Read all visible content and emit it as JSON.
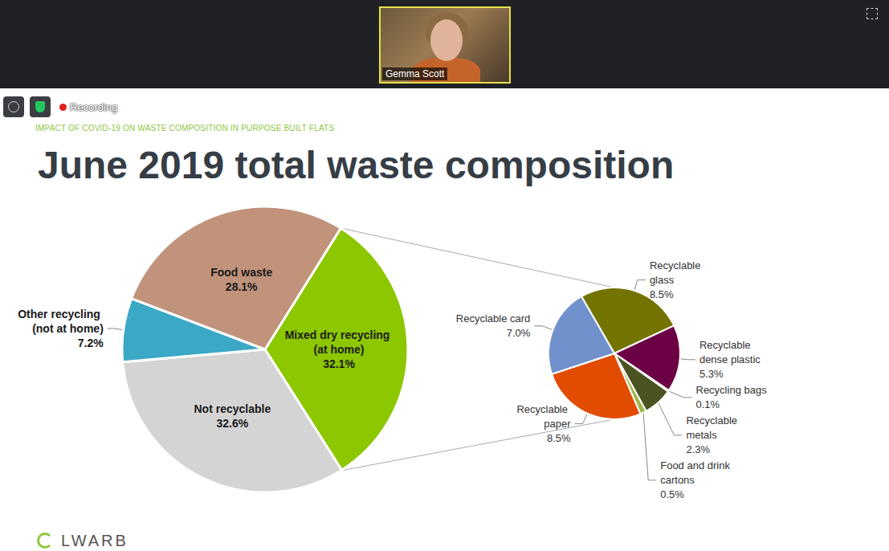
{
  "screen": {
    "participant": "Gemma Scott",
    "recording": "Recording",
    "kicker": "IMPACT OF COVID-19 ON WASTE COMPOSITION IN PURPOSE BUILT FLATS",
    "logo": "LWARB"
  },
  "chart_data": [
    {
      "type": "pie",
      "title": "June 2019 total waste composition",
      "categories": [
        "Mixed dry recycling (at home)",
        "Not recyclable",
        "Other recycling (not at home)",
        "Food waste"
      ],
      "values": [
        32.1,
        32.6,
        7.2,
        28.1
      ],
      "value_labels": [
        "32.1%",
        "32.6%",
        "7.2%",
        "28.1%"
      ],
      "colors": [
        "#8dc700",
        "#d4d4d4",
        "#3ba9c6",
        "#c0937a"
      ],
      "data_labels": true
    },
    {
      "type": "pie",
      "categories": [
        "Recyclable glass",
        "Recyclable dense plastic",
        "Recycling bags",
        "Recyclable metals",
        "Food and drink cartons",
        "Recyclable paper",
        "Recyclable card"
      ],
      "values": [
        8.5,
        5.3,
        0.1,
        2.3,
        0.5,
        8.5,
        7.0
      ],
      "value_labels": [
        "8.5%",
        "5.3%",
        "0.1%",
        "2.3%",
        "0.5%",
        "8.5%",
        "7.0%"
      ],
      "colors": [
        "#737400",
        "#6c0045",
        "#2f3a14",
        "#4b5320",
        "#9cb84a",
        "#e14c00",
        "#7191cc"
      ],
      "data_labels": true
    }
  ]
}
